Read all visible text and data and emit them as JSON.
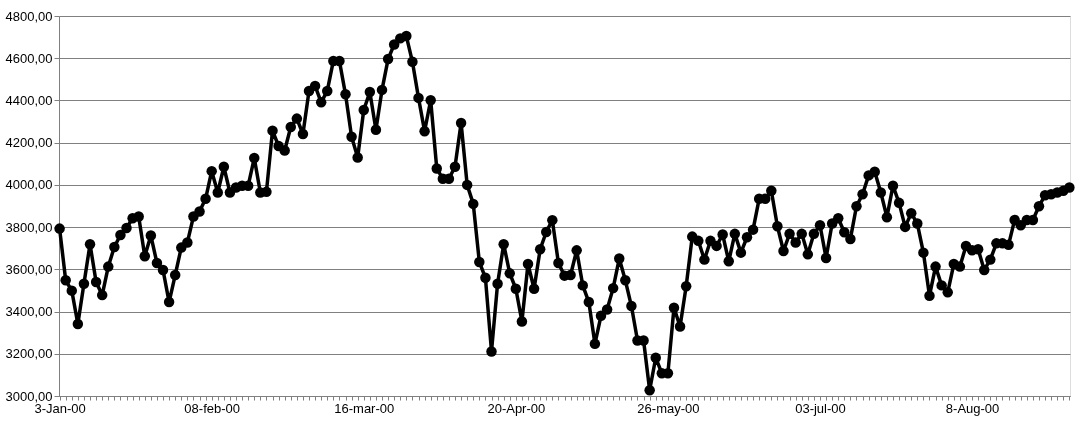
{
  "chart_data": {
    "type": "line",
    "categories": [
      "3-Jan-00",
      null,
      null,
      null,
      null,
      null,
      null,
      null,
      null,
      null,
      null,
      null,
      null,
      null,
      null,
      null,
      null,
      null,
      null,
      null,
      null,
      null,
      null,
      null,
      null,
      "08-feb-00",
      null,
      null,
      null,
      null,
      null,
      null,
      null,
      null,
      null,
      null,
      null,
      null,
      null,
      null,
      null,
      null,
      null,
      null,
      null,
      null,
      null,
      null,
      null,
      null,
      "16-mar-00",
      null,
      null,
      null,
      null,
      null,
      null,
      null,
      null,
      null,
      null,
      null,
      null,
      null,
      null,
      null,
      null,
      null,
      null,
      null,
      null,
      null,
      null,
      null,
      null,
      "20-Apr-00",
      null,
      null,
      null,
      null,
      null,
      null,
      null,
      null,
      null,
      null,
      null,
      null,
      null,
      null,
      null,
      null,
      null,
      null,
      null,
      null,
      null,
      null,
      null,
      null,
      "26-may-00",
      null,
      null,
      null,
      null,
      null,
      null,
      null,
      null,
      null,
      null,
      null,
      null,
      null,
      null,
      null,
      null,
      null,
      null,
      null,
      null,
      null,
      null,
      null,
      null,
      "03-jul-00",
      null,
      null,
      null,
      null,
      null,
      null,
      null,
      null,
      null,
      null,
      null,
      null,
      null,
      null,
      null,
      null,
      null,
      null,
      null,
      null,
      null,
      null,
      null,
      null,
      "8-Aug-00",
      null,
      null,
      null,
      null,
      null,
      null,
      null,
      null,
      null,
      null,
      null,
      null,
      null,
      null,
      null,
      null
    ],
    "series": [
      {
        "color": "#000000",
        "values": [
          3793,
          3548,
          3499,
          3341,
          3532,
          3719,
          3540,
          3478,
          3613,
          3706,
          3763,
          3796,
          3842,
          3850,
          3662,
          3760,
          3630,
          3597,
          3445,
          3573,
          3703,
          3727,
          3850,
          3874,
          3934,
          4065,
          3964,
          4086,
          3964,
          3988,
          3996,
          3996,
          4127,
          3964,
          3967,
          4257,
          4184,
          4163,
          4274,
          4314,
          4241,
          4445,
          4469,
          4391,
          4445,
          4587,
          4587,
          4429,
          4228,
          4130,
          4355,
          4440,
          4261,
          4450,
          4596,
          4665,
          4694,
          4705,
          4583,
          4412,
          4254,
          4401,
          4078,
          4029,
          4029,
          4086,
          4293,
          4000,
          3910,
          3635,
          3560,
          3211,
          3532,
          3719,
          3581,
          3508,
          3353,
          3625,
          3508,
          3695,
          3777,
          3833,
          3630,
          3570,
          3573,
          3690,
          3524,
          3445,
          3247,
          3380,
          3410,
          3511,
          3651,
          3548,
          3426,
          3263,
          3263,
          3027,
          3181,
          3108,
          3108,
          3418,
          3329,
          3520,
          3755,
          3735,
          3646,
          3735,
          3711,
          3765,
          3638,
          3768,
          3679,
          3752,
          3788,
          3934,
          3934,
          3972,
          3804,
          3687,
          3768,
          3727,
          3768,
          3671,
          3768,
          3809,
          3654,
          3817,
          3842,
          3776,
          3744,
          3899,
          3956,
          4045,
          4062,
          3964,
          3847,
          3996,
          3915,
          3801,
          3866,
          3817,
          3679,
          3475,
          3613,
          3524,
          3491,
          3625,
          3613,
          3711,
          3690,
          3695,
          3597,
          3646,
          3723,
          3723,
          3716,
          3834,
          3809,
          3834,
          3834,
          3899,
          3951,
          3956,
          3964,
          3972,
          3988
        ]
      }
    ],
    "ylim": [
      3000,
      4800
    ],
    "yticks": [
      {
        "value": 3000,
        "label": "3000,00"
      },
      {
        "value": 3200,
        "label": "3200,00"
      },
      {
        "value": 3400,
        "label": "3400,00"
      },
      {
        "value": 3600,
        "label": "3600,00"
      },
      {
        "value": 3800,
        "label": "3800,00"
      },
      {
        "value": 4000,
        "label": "4000,00"
      },
      {
        "value": 4200,
        "label": "4200,00"
      },
      {
        "value": 4400,
        "label": "4400,00"
      },
      {
        "value": 4600,
        "label": "4600,00"
      },
      {
        "value": 4800,
        "label": "4800,00"
      }
    ],
    "grid": "y",
    "marker": "circle",
    "line_style": "solid"
  }
}
